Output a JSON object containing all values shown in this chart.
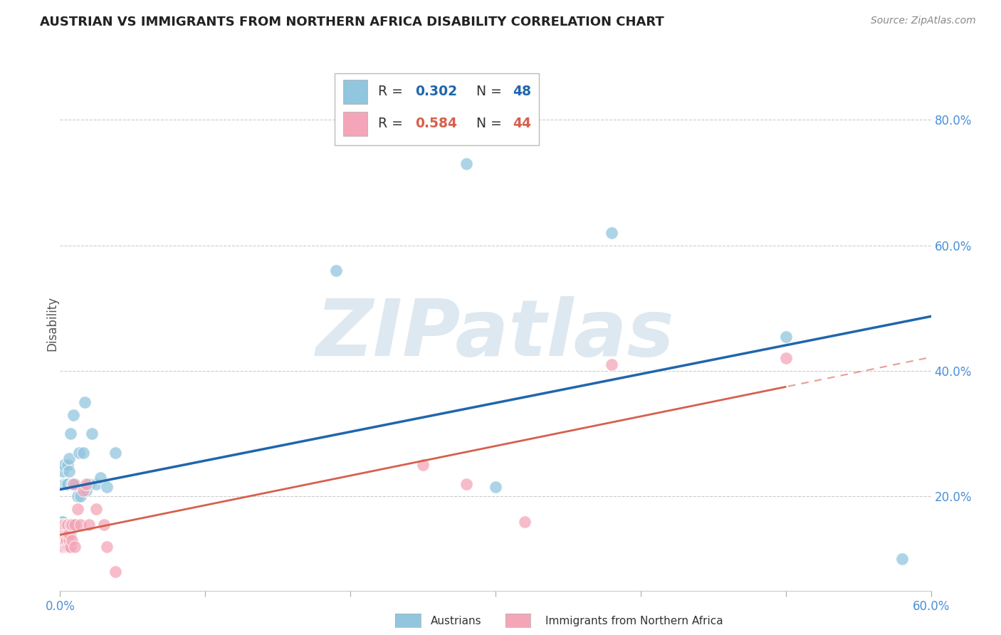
{
  "title": "AUSTRIAN VS IMMIGRANTS FROM NORTHERN AFRICA DISABILITY CORRELATION CHART",
  "source": "Source: ZipAtlas.com",
  "ylabel": "Disability",
  "legend_label_blue": "Austrians",
  "legend_label_pink": "Immigrants from Northern Africa",
  "legend_blue_R": "0.302",
  "legend_blue_N": "48",
  "legend_pink_R": "0.584",
  "legend_pink_N": "44",
  "color_blue": "#92c5de",
  "color_pink": "#f4a6b8",
  "color_blue_line": "#2166ac",
  "color_pink_line": "#d6604d",
  "blue_scatter_x": [
    0.001,
    0.001,
    0.001,
    0.002,
    0.002,
    0.002,
    0.002,
    0.003,
    0.003,
    0.003,
    0.003,
    0.004,
    0.004,
    0.004,
    0.004,
    0.005,
    0.005,
    0.005,
    0.006,
    0.006,
    0.006,
    0.006,
    0.007,
    0.007,
    0.008,
    0.008,
    0.009,
    0.009,
    0.01,
    0.01,
    0.012,
    0.013,
    0.014,
    0.016,
    0.017,
    0.018,
    0.02,
    0.022,
    0.025,
    0.028,
    0.032,
    0.038,
    0.19,
    0.28,
    0.3,
    0.38,
    0.5,
    0.58
  ],
  "blue_scatter_y": [
    0.14,
    0.15,
    0.16,
    0.14,
    0.155,
    0.16,
    0.24,
    0.14,
    0.15,
    0.22,
    0.25,
    0.14,
    0.155,
    0.22,
    0.15,
    0.14,
    0.22,
    0.25,
    0.14,
    0.15,
    0.24,
    0.26,
    0.14,
    0.3,
    0.15,
    0.22,
    0.22,
    0.33,
    0.155,
    0.22,
    0.2,
    0.27,
    0.2,
    0.27,
    0.35,
    0.21,
    0.22,
    0.3,
    0.22,
    0.23,
    0.215,
    0.27,
    0.56,
    0.73,
    0.215,
    0.62,
    0.455,
    0.1
  ],
  "pink_scatter_x": [
    0.001,
    0.001,
    0.001,
    0.001,
    0.002,
    0.002,
    0.002,
    0.002,
    0.003,
    0.003,
    0.003,
    0.003,
    0.004,
    0.004,
    0.004,
    0.004,
    0.004,
    0.005,
    0.005,
    0.005,
    0.006,
    0.006,
    0.006,
    0.007,
    0.007,
    0.008,
    0.008,
    0.009,
    0.01,
    0.01,
    0.012,
    0.014,
    0.016,
    0.018,
    0.02,
    0.025,
    0.03,
    0.032,
    0.038,
    0.25,
    0.28,
    0.32,
    0.38,
    0.5
  ],
  "pink_scatter_y": [
    0.12,
    0.13,
    0.14,
    0.155,
    0.12,
    0.13,
    0.14,
    0.155,
    0.12,
    0.13,
    0.14,
    0.155,
    0.12,
    0.13,
    0.14,
    0.155,
    0.13,
    0.12,
    0.14,
    0.155,
    0.12,
    0.13,
    0.14,
    0.12,
    0.155,
    0.13,
    0.155,
    0.22,
    0.12,
    0.155,
    0.18,
    0.155,
    0.21,
    0.22,
    0.155,
    0.18,
    0.155,
    0.12,
    0.08,
    0.25,
    0.22,
    0.16,
    0.41,
    0.42
  ],
  "xlim": [
    0.0,
    0.6
  ],
  "ylim": [
    0.05,
    0.9
  ],
  "yticks": [
    0.2,
    0.4,
    0.6,
    0.8
  ],
  "xtick_positions": [
    0.0,
    0.1,
    0.2,
    0.3,
    0.4,
    0.5,
    0.6
  ],
  "background_color": "#ffffff",
  "watermark_text": "ZIPatlas",
  "watermark_color": "#dde8f0",
  "grid_color": "#cccccc"
}
